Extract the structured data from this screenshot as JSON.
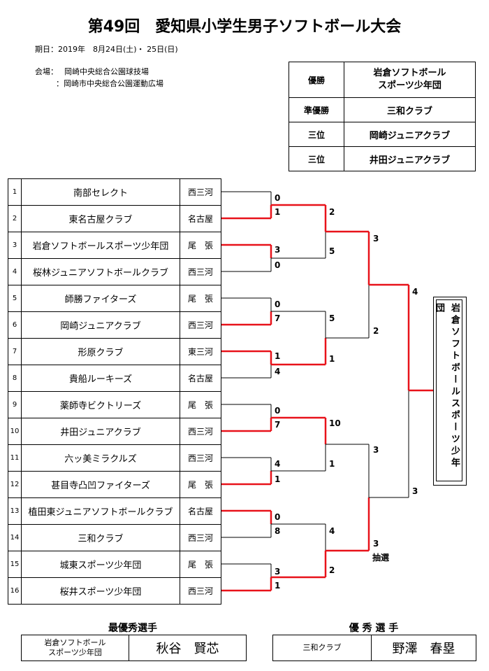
{
  "title": "第49回　愛知県小学生男子ソフトボール大会",
  "period": "期日：2019年　8月24日(土)・ 25日(日)",
  "venue_label": "会場：",
  "venue1": "岡崎中央総合公園球技場",
  "venue2": "：岡崎市中央総合公園運動広場",
  "results": [
    {
      "label": "優勝",
      "team": "岩倉ソフトボール\nスポーツ少年団"
    },
    {
      "label": "準優勝",
      "team": "三和クラブ"
    },
    {
      "label": "三位",
      "team": "岡崎ジュニアクラブ"
    },
    {
      "label": "三位",
      "team": "井田ジュニアクラブ"
    }
  ],
  "teams": [
    {
      "seed": "1",
      "name": "南部セレクト",
      "region": "西三河"
    },
    {
      "seed": "2",
      "name": "東名古屋クラブ",
      "region": "名古屋"
    },
    {
      "seed": "3",
      "name": "岩倉ソフトボールスポーツ少年団",
      "region": "尾　張"
    },
    {
      "seed": "4",
      "name": "桜林ジュニアソフトボールクラブ",
      "region": "西三河"
    },
    {
      "seed": "5",
      "name": "師勝ファイターズ",
      "region": "尾　張"
    },
    {
      "seed": "6",
      "name": "岡崎ジュニアクラブ",
      "region": "西三河"
    },
    {
      "seed": "7",
      "name": "形原クラブ",
      "region": "東三河"
    },
    {
      "seed": "8",
      "name": "貴船ルーキーズ",
      "region": "名古屋"
    },
    {
      "seed": "9",
      "name": "薬師寺ビクトリーズ",
      "region": "尾　張"
    },
    {
      "seed": "10",
      "name": "井田ジュニアクラブ",
      "region": "西三河"
    },
    {
      "seed": "11",
      "name": "六ッ美ミラクルズ",
      "region": "西三河"
    },
    {
      "seed": "12",
      "name": "甚目寺凸凹ファイターズ",
      "region": "尾　張"
    },
    {
      "seed": "13",
      "name": "植田東ジュニアソフトボールクラブ",
      "region": "名古屋"
    },
    {
      "seed": "14",
      "name": "三和クラブ",
      "region": "西三河"
    },
    {
      "seed": "15",
      "name": "城東スポーツ少年団",
      "region": "尾　張"
    },
    {
      "seed": "16",
      "name": "桜井スポーツ少年団",
      "region": "西三河"
    }
  ],
  "scores": {
    "r1": [
      "0",
      "1",
      "3",
      "0",
      "0",
      "7",
      "1",
      "4",
      "0",
      "7",
      "4",
      "1",
      "0",
      "8",
      "3",
      "1"
    ],
    "qf": [
      "2",
      "5",
      "5",
      "1",
      "10",
      "1",
      "4",
      "2"
    ],
    "sf": [
      "3",
      "2",
      "3",
      "3"
    ],
    "sf_note": "抽選",
    "final": [
      "4",
      "3"
    ]
  },
  "champion": "岩倉ソフトボールスポーツ少年団",
  "awards": {
    "mvp_title": "最優秀選手",
    "mvp_team": "岩倉ソフトボール\nスポーツ少年団",
    "mvp_name": "秋谷　賢芯",
    "excellent_title": "優 秀 選 手",
    "excellent_team": "三和クラブ",
    "excellent_name": "野澤　春塁"
  },
  "colors": {
    "winner_line": "#e8121a",
    "line": "#000000"
  }
}
